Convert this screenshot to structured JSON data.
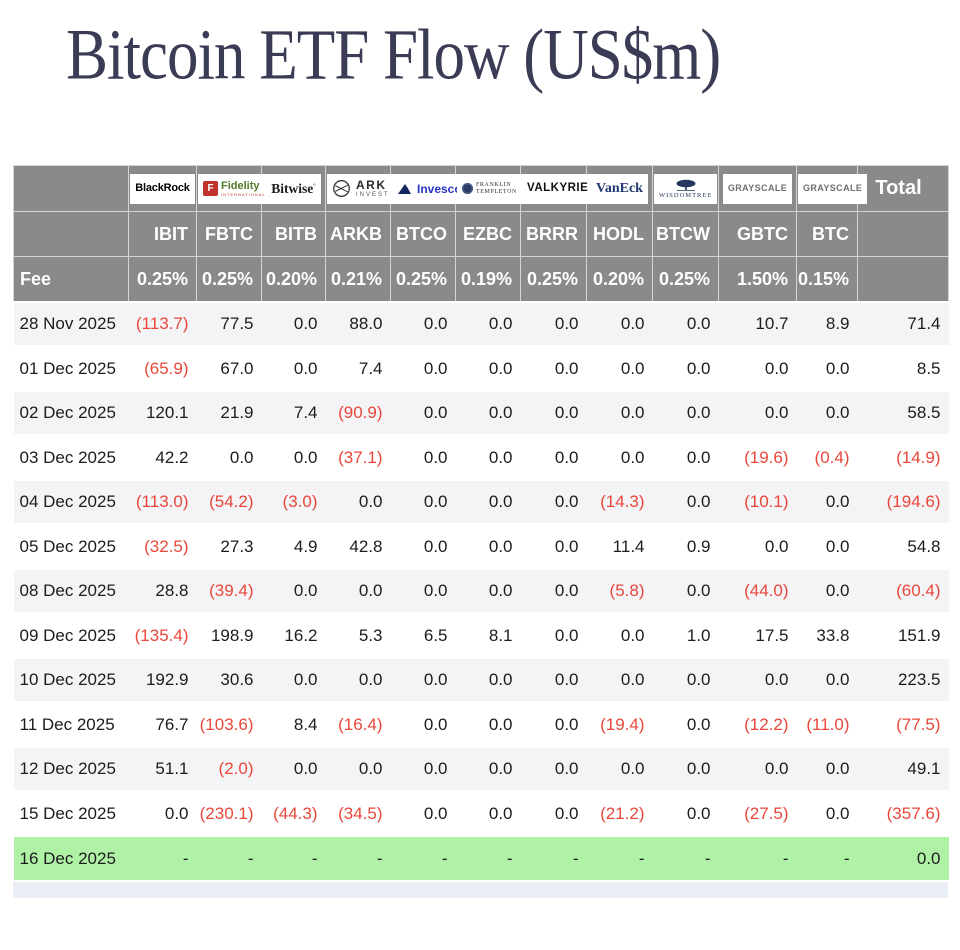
{
  "chart_data": {
    "type": "table",
    "title": "Bitcoin ETF Flow (US$m)",
    "fee_label": "Fee",
    "total_label": "Total",
    "negative_format": "parentheses-red",
    "columns": [
      {
        "ticker": "IBIT",
        "fee": "0.25%",
        "logo": {
          "id": "blackrock",
          "name": "blackrock-logo",
          "label": "BlackRock"
        }
      },
      {
        "ticker": "FBTC",
        "fee": "0.25%",
        "logo": {
          "id": "fidelity",
          "name": "fidelity-logo",
          "label": "Fidelity",
          "sub": "INTERNATIONAL",
          "monogram": "F"
        }
      },
      {
        "ticker": "BITB",
        "fee": "0.20%",
        "logo": {
          "id": "bitwise",
          "name": "bitwise-logo",
          "label": "Bitwise"
        }
      },
      {
        "ticker": "ARKB",
        "fee": "0.21%",
        "logo": {
          "id": "ark",
          "name": "ark-invest-logo",
          "label": "ARK",
          "sub": "INVEST"
        }
      },
      {
        "ticker": "BTCO",
        "fee": "0.25%",
        "logo": {
          "id": "invesco",
          "name": "invesco-logo",
          "label": "Invesco"
        }
      },
      {
        "ticker": "EZBC",
        "fee": "0.19%",
        "logo": {
          "id": "franklin",
          "name": "franklin-templeton-logo",
          "label": "FRANKLIN",
          "sub": "TEMPLETON"
        }
      },
      {
        "ticker": "BRRR",
        "fee": "0.25%",
        "logo": {
          "id": "valkyrie",
          "name": "valkyrie-logo",
          "label": "VALKYRIE"
        }
      },
      {
        "ticker": "HODL",
        "fee": "0.20%",
        "logo": {
          "id": "vaneck",
          "name": "vaneck-logo",
          "label": "VanEck"
        }
      },
      {
        "ticker": "BTCW",
        "fee": "0.25%",
        "logo": {
          "id": "wisdomtree",
          "name": "wisdomtree-logo",
          "label": "WISDOMTREE"
        }
      },
      {
        "ticker": "GBTC",
        "fee": "1.50%",
        "logo": {
          "id": "grayscale",
          "name": "grayscale-logo",
          "label": "GRAYSCALE"
        }
      },
      {
        "ticker": "BTC",
        "fee": "0.15%",
        "logo": {
          "id": "grayscale",
          "name": "grayscale-logo",
          "label": "GRAYSCALE"
        }
      }
    ],
    "rows": [
      {
        "date": "28 Nov 2025",
        "values": [
          "(113.7)",
          "77.5",
          "0.0",
          "88.0",
          "0.0",
          "0.0",
          "0.0",
          "0.0",
          "0.0",
          "10.7",
          "8.9"
        ],
        "total": "71.4",
        "highlight": false
      },
      {
        "date": "01 Dec 2025",
        "values": [
          "(65.9)",
          "67.0",
          "0.0",
          "7.4",
          "0.0",
          "0.0",
          "0.0",
          "0.0",
          "0.0",
          "0.0",
          "0.0"
        ],
        "total": "8.5",
        "highlight": false
      },
      {
        "date": "02 Dec 2025",
        "values": [
          "120.1",
          "21.9",
          "7.4",
          "(90.9)",
          "0.0",
          "0.0",
          "0.0",
          "0.0",
          "0.0",
          "0.0",
          "0.0"
        ],
        "total": "58.5",
        "highlight": false
      },
      {
        "date": "03 Dec 2025",
        "values": [
          "42.2",
          "0.0",
          "0.0",
          "(37.1)",
          "0.0",
          "0.0",
          "0.0",
          "0.0",
          "0.0",
          "(19.6)",
          "(0.4)"
        ],
        "total": "(14.9)",
        "highlight": false
      },
      {
        "date": "04 Dec 2025",
        "values": [
          "(113.0)",
          "(54.2)",
          "(3.0)",
          "0.0",
          "0.0",
          "0.0",
          "0.0",
          "(14.3)",
          "0.0",
          "(10.1)",
          "0.0"
        ],
        "total": "(194.6)",
        "highlight": false
      },
      {
        "date": "05 Dec 2025",
        "values": [
          "(32.5)",
          "27.3",
          "4.9",
          "42.8",
          "0.0",
          "0.0",
          "0.0",
          "11.4",
          "0.9",
          "0.0",
          "0.0"
        ],
        "total": "54.8",
        "highlight": false
      },
      {
        "date": "08 Dec 2025",
        "values": [
          "28.8",
          "(39.4)",
          "0.0",
          "0.0",
          "0.0",
          "0.0",
          "0.0",
          "(5.8)",
          "0.0",
          "(44.0)",
          "0.0"
        ],
        "total": "(60.4)",
        "highlight": false
      },
      {
        "date": "09 Dec 2025",
        "values": [
          "(135.4)",
          "198.9",
          "16.2",
          "5.3",
          "6.5",
          "8.1",
          "0.0",
          "0.0",
          "1.0",
          "17.5",
          "33.8"
        ],
        "total": "151.9",
        "highlight": false
      },
      {
        "date": "10 Dec 2025",
        "values": [
          "192.9",
          "30.6",
          "0.0",
          "0.0",
          "0.0",
          "0.0",
          "0.0",
          "0.0",
          "0.0",
          "0.0",
          "0.0"
        ],
        "total": "223.5",
        "highlight": false
      },
      {
        "date": "11 Dec 2025",
        "values": [
          "76.7",
          "(103.6)",
          "8.4",
          "(16.4)",
          "0.0",
          "0.0",
          "0.0",
          "(19.4)",
          "0.0",
          "(12.2)",
          "(11.0)"
        ],
        "total": "(77.5)",
        "highlight": false
      },
      {
        "date": "12 Dec 2025",
        "values": [
          "51.1",
          "(2.0)",
          "0.0",
          "0.0",
          "0.0",
          "0.0",
          "0.0",
          "0.0",
          "0.0",
          "0.0",
          "0.0"
        ],
        "total": "49.1",
        "highlight": false
      },
      {
        "date": "15 Dec 2025",
        "values": [
          "0.0",
          "(230.1)",
          "(44.3)",
          "(34.5)",
          "0.0",
          "0.0",
          "0.0",
          "(21.2)",
          "0.0",
          "(27.5)",
          "0.0"
        ],
        "total": "(357.6)",
        "highlight": false
      },
      {
        "date": "16 Dec 2025",
        "values": [
          "-",
          "-",
          "-",
          "-",
          "-",
          "-",
          "-",
          "-",
          "-",
          "-",
          "-"
        ],
        "total": "0.0",
        "highlight": true
      }
    ]
  },
  "colors": {
    "header_gray": "#8a8a8a",
    "negative_red": "#e8473a",
    "highlight_green": "#b0f2a5",
    "row_alt_gray": "#f4f4f6",
    "title_navy": "#3a3b54",
    "partial_row_blue": "#e9edf4"
  }
}
